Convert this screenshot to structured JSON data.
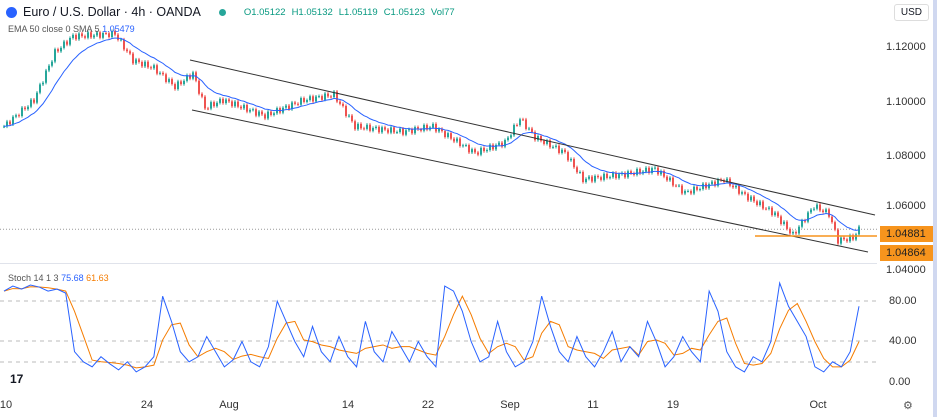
{
  "header": {
    "title": "Euro / U.S. Dollar · 4h · OANDA",
    "open": "O1.05122",
    "high": "H1.05132",
    "low": "L1.05119",
    "close": "C1.05123",
    "volume": "Vol77"
  },
  "currency": "USD",
  "ema_legend": {
    "label": "EMA 50 close 0 SMA 5",
    "value": "1.05479"
  },
  "stoch_legend": {
    "label": "Stoch 14 1 3",
    "k": "75.68",
    "d": "61.63"
  },
  "price_axis": [
    "1.12000",
    "1.10000",
    "1.08000",
    "1.06000",
    "1.04000"
  ],
  "price_tags": [
    "1.04881",
    "1.04864"
  ],
  "stoch_axis": [
    "80.00",
    "40.00",
    "0.00"
  ],
  "dates": [
    "10",
    "24",
    "Aug",
    "14",
    "22",
    "Sep",
    "11",
    "19",
    "Oct"
  ],
  "colors": {
    "up": "#26a69a",
    "down": "#ef5350",
    "ema": "#2962ff",
    "k": "#2962ff",
    "d": "#f57c00",
    "tag": "#f7941d"
  },
  "chart_data": {
    "type": "candlestick",
    "price_path": [
      [
        0,
        1.09
      ],
      [
        10,
        1.1
      ],
      [
        17,
        1.118
      ],
      [
        23,
        1.124
      ],
      [
        37,
        1.125
      ],
      [
        43,
        1.115
      ],
      [
        50,
        1.112
      ],
      [
        57,
        1.105
      ],
      [
        63,
        1.11
      ],
      [
        67,
        1.097
      ],
      [
        73,
        1.1
      ],
      [
        87,
        1.094
      ],
      [
        100,
        1.1
      ],
      [
        110,
        1.102
      ],
      [
        117,
        1.09
      ],
      [
        133,
        1.088
      ],
      [
        143,
        1.09
      ],
      [
        157,
        1.08
      ],
      [
        167,
        1.084
      ],
      [
        172,
        1.093
      ],
      [
        177,
        1.086
      ],
      [
        187,
        1.08
      ],
      [
        193,
        1.07
      ],
      [
        207,
        1.072
      ],
      [
        217,
        1.074
      ],
      [
        227,
        1.065
      ],
      [
        240,
        1.07
      ],
      [
        247,
        1.064
      ],
      [
        257,
        1.057
      ],
      [
        263,
        1.049
      ],
      [
        270,
        1.06
      ],
      [
        275,
        1.057
      ],
      [
        278,
        1.047
      ],
      [
        283,
        1.048
      ],
      [
        285,
        1.0512
      ]
    ],
    "stoch_k": [
      90,
      95,
      92,
      96,
      94,
      90,
      92,
      88,
      30,
      20,
      15,
      25,
      18,
      12,
      20,
      10,
      15,
      25,
      85,
      60,
      30,
      20,
      25,
      45,
      30,
      15,
      22,
      40,
      20,
      15,
      35,
      80,
      60,
      40,
      25,
      55,
      30,
      20,
      45,
      25,
      15,
      60,
      30,
      20,
      50,
      35,
      20,
      40,
      25,
      15,
      95,
      90,
      70,
      40,
      20,
      25,
      60,
      30,
      15,
      20,
      40,
      85,
      55,
      30,
      20,
      45,
      25,
      15,
      30,
      50,
      20,
      35,
      25,
      60,
      40,
      15,
      25,
      45,
      30,
      20,
      90,
      70,
      30,
      15,
      10,
      25,
      20,
      40,
      98,
      75,
      60,
      45,
      15,
      10,
      20,
      15,
      30,
      75
    ]
  }
}
